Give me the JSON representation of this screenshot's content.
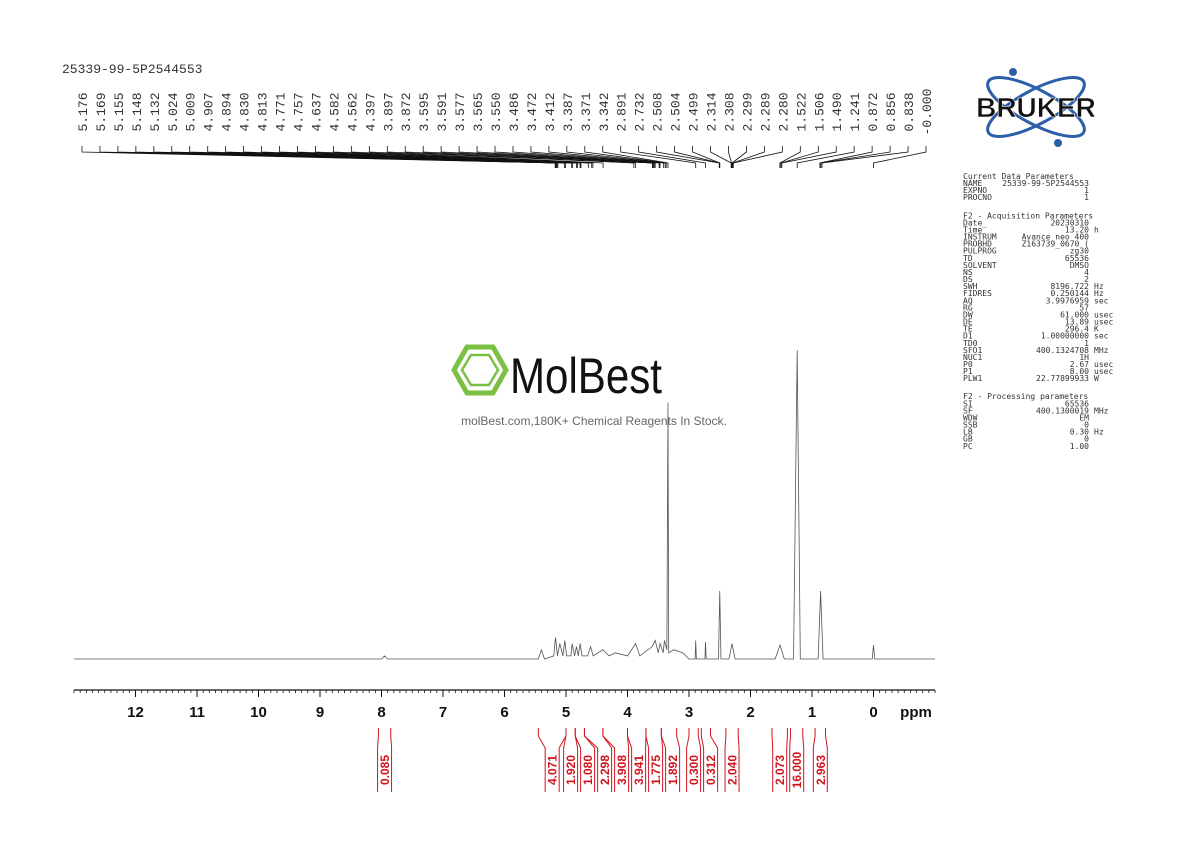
{
  "chart_data": {
    "type": "nmr",
    "title": "25339-99-5P2544553",
    "x_label": "ppm",
    "xlim": [
      13,
      -1
    ],
    "xticks": [
      12,
      11,
      10,
      9,
      8,
      7,
      6,
      5,
      4,
      3,
      2,
      1,
      0
    ],
    "minor_tick_step": 0.1,
    "ylim": [
      0,
      100
    ],
    "color": "#555555",
    "integral_color": "#d0141e",
    "spectrum": {
      "x": [
        13,
        8.0,
        7.95,
        7.9,
        5.45,
        5.4,
        5.35,
        5.2,
        5.17,
        5.14,
        5.1,
        5.05,
        5.02,
        4.99,
        4.92,
        4.9,
        4.86,
        4.83,
        4.8,
        4.77,
        4.74,
        4.65,
        4.6,
        4.56,
        4.4,
        4.3,
        4.2,
        4.0,
        3.9,
        3.87,
        3.8,
        3.6,
        3.55,
        3.5,
        3.47,
        3.42,
        3.4,
        3.36,
        3.342,
        3.33,
        3.25,
        3.1,
        3.0,
        2.9,
        2.891,
        2.88,
        2.74,
        2.732,
        2.72,
        2.52,
        2.5,
        2.48,
        2.35,
        2.3,
        2.25,
        1.6,
        1.52,
        1.45,
        1.3,
        1.241,
        1.19,
        0.9,
        0.86,
        0.82,
        0.02,
        0.0,
        -0.02,
        -1
      ],
      "y": [
        0,
        0,
        1,
        0,
        0,
        3,
        0,
        1,
        7,
        1,
        5,
        1,
        6,
        1,
        1,
        5,
        1,
        4,
        1,
        5,
        1,
        1,
        4,
        1,
        3,
        1,
        2,
        1,
        4,
        5,
        1,
        4,
        6,
        2,
        5,
        2,
        6,
        3,
        83,
        2,
        3,
        2,
        0,
        0,
        6,
        0,
        0,
        5.5,
        0,
        0,
        22,
        0,
        0,
        5,
        0,
        0,
        4.5,
        0,
        0,
        100,
        0,
        0,
        22,
        0,
        0,
        4.5,
        0,
        0
      ]
    },
    "peaks": {
      "values": [
        5.176,
        5.169,
        5.155,
        5.148,
        5.132,
        5.024,
        5.009,
        4.907,
        4.894,
        4.83,
        4.813,
        4.771,
        4.757,
        4.637,
        4.582,
        4.562,
        4.397,
        3.897,
        3.872,
        3.595,
        3.591,
        3.577,
        3.565,
        3.55,
        3.486,
        3.472,
        3.412,
        3.387,
        3.371,
        3.342,
        2.891,
        2.732,
        2.508,
        2.504,
        2.499,
        2.314,
        2.308,
        2.299,
        2.289,
        2.28,
        1.522,
        1.506,
        1.49,
        1.241,
        0.872,
        0.856,
        0.838,
        0
      ],
      "value_labels": [
        "5.176",
        "5.169",
        "5.155",
        "5.148",
        "5.132",
        "5.024",
        "5.009",
        "4.907",
        "4.894",
        "4.830",
        "4.813",
        "4.771",
        "4.757",
        "4.637",
        "4.582",
        "4.562",
        "4.397",
        "3.897",
        "3.872",
        "3.595",
        "3.591",
        "3.577",
        "3.565",
        "3.550",
        "3.486",
        "3.472",
        "3.412",
        "3.387",
        "3.371",
        "3.342",
        "2.891",
        "2.732",
        "2.508",
        "2.504",
        "2.499",
        "2.314",
        "2.308",
        "2.299",
        "2.289",
        "2.280",
        "1.522",
        "1.506",
        "1.490",
        "1.241",
        "0.872",
        "0.856",
        "0.838",
        "-0.000"
      ]
    },
    "integrals": {
      "values": [
        0.085,
        4.071,
        1.92,
        1.08,
        2.298,
        3.908,
        3.941,
        1.775,
        1.892,
        0.3,
        0.312,
        2.04,
        2.073,
        16,
        2.963
      ],
      "value_labels": [
        "0.085",
        "4.071",
        "1.920",
        "1.080",
        "2.298",
        "3.908",
        "3.941",
        "1.775",
        "1.892",
        "0.300",
        "0.312",
        "2.040",
        "2.073",
        "16.000",
        "2.963"
      ],
      "ranges": [
        [
          8.05,
          7.85
        ],
        [
          5.45,
          5.0
        ],
        [
          5.0,
          4.85
        ],
        [
          4.85,
          4.7
        ],
        [
          4.7,
          4.4
        ],
        [
          4.4,
          4.0
        ],
        [
          4.0,
          3.7
        ],
        [
          3.7,
          3.45
        ],
        [
          3.45,
          3.2
        ],
        [
          3.0,
          2.85
        ],
        [
          2.8,
          2.65
        ],
        [
          2.4,
          2.2
        ],
        [
          1.65,
          1.4
        ],
        [
          1.35,
          1.15
        ],
        [
          0.95,
          0.78
        ]
      ]
    }
  },
  "logo": "BRUKER",
  "watermark": {
    "brand": "MolBest",
    "tagline": "molBest.com,180K+ Chemical Reagents In Stock."
  },
  "parameters": [
    {
      "title": "Current Data Parameters",
      "rows": [
        [
          "NAME",
          "25339-99-5P2544553"
        ],
        [
          "EXPNO",
          "1"
        ],
        [
          "PROCNO",
          "1"
        ]
      ]
    },
    {
      "title": "F2 - Acquisition Parameters",
      "rows": [
        [
          "Date_",
          "20230310"
        ],
        [
          "Time",
          "13.20",
          "h"
        ],
        [
          "INSTRUM",
          "Avance neo 400"
        ],
        [
          "PROBHD",
          "Z163739_0670 ("
        ],
        [
          "PULPROG",
          "zg30"
        ],
        [
          "TD",
          "65536"
        ],
        [
          "SOLVENT",
          "DMSO"
        ],
        [
          "NS",
          "4"
        ],
        [
          "DS",
          "2"
        ],
        [
          "SWH",
          "8196.722",
          "Hz"
        ],
        [
          "FIDRES",
          "0.250144",
          "Hz"
        ],
        [
          "AQ",
          "3.9976959",
          "sec"
        ],
        [
          "RG",
          "57"
        ],
        [
          "DW",
          "61.000",
          "usec"
        ],
        [
          "DE",
          "13.89",
          "usec"
        ],
        [
          "TE",
          "296.4",
          "K"
        ],
        [
          "D1",
          "1.00000000",
          "sec"
        ],
        [
          "TD0",
          "1"
        ],
        [
          "SFO1",
          "400.1324708",
          "MHz"
        ],
        [
          "NUC1",
          "1H"
        ],
        [
          "P0",
          "2.67",
          "usec"
        ],
        [
          "P1",
          "8.00",
          "usec"
        ],
        [
          "PLW1",
          "22.77899933",
          "W"
        ]
      ]
    },
    {
      "title": "F2 - Processing parameters",
      "rows": [
        [
          "SI",
          "65536"
        ],
        [
          "SF",
          "400.1300019",
          "MHz"
        ],
        [
          "WDW",
          "EM"
        ],
        [
          "SSB",
          "0"
        ],
        [
          "LB",
          "0.30",
          "Hz"
        ],
        [
          "GB",
          "0"
        ],
        [
          "PC",
          "1.00"
        ]
      ]
    }
  ]
}
